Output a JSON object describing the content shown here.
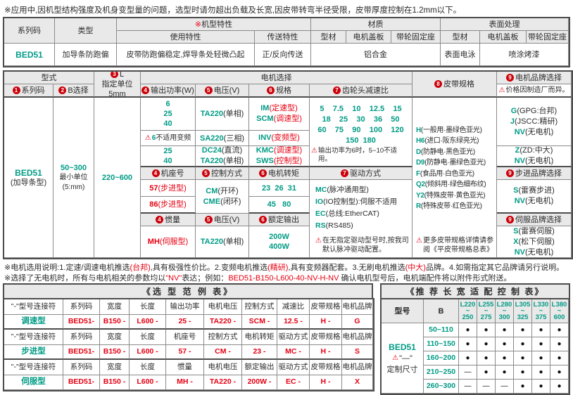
{
  "page": {
    "top_note": "※应用中,因机型结构强度及机身变型量的问题，选型时请勿超出负载及长宽,因皮带转弯半径受限，皮带厚度控制在1.2mm以下。"
  },
  "colors": {
    "teal": "#009b85",
    "red": "#e60012",
    "header_gray": "#e9e9e9"
  },
  "overview": {
    "h_series": "系列码",
    "h_type": "类型",
    "feature_mark": "※",
    "h_feature": "机型特性",
    "h_material": "材质",
    "h_surface": "表面处理",
    "h_use": "使用特性",
    "h_transfer": "传送特性",
    "h_profile": "型材",
    "h_cover": "电机盖板",
    "h_pulley": "带轮固定座",
    "h_profile2": "型材",
    "h_cover2": "电机盖板",
    "h_pulley2": "带轮固定座",
    "series": "BED51",
    "type": "加导条防跑偏",
    "use": "皮带防跑偏稳定,焊导条处轻微凸起",
    "transfer": "正/反向传送",
    "material": "铝合金",
    "surface_profile": "表面电泳",
    "surface_paint": "喷涂烤漆"
  },
  "main": {
    "h_xingshi": "型式",
    "h_series": {
      "num": "1",
      "text": "系列码"
    },
    "h_b": {
      "num": "2",
      "text": "B选择"
    },
    "h_l": {
      "num": "3",
      "text": "L",
      "sub": "指定单位5mm"
    },
    "h_motor": "电机选择",
    "h_power": {
      "num": "4",
      "text": "输出功率(W)"
    },
    "h_volt": {
      "num": "5",
      "text": "电压(V)"
    },
    "h_spec": {
      "num": "6",
      "text": "规格"
    },
    "h_gear": {
      "num": "7",
      "text": "齿轮头减速比"
    },
    "h_belt": {
      "num": "8",
      "text": "皮带规格"
    },
    "h_brand": {
      "num": "9",
      "text": "电机品牌选择"
    },
    "brand_note": "价格因制造厂而异。",
    "series": "BED51",
    "series_sub": "(加导条型)",
    "b_val": "50~300",
    "b_sub1": "最小单位",
    "b_sub2": "(5:mm)",
    "l_val": "220~600",
    "power_a": "6\n25\n40",
    "power_b": {
      "code": "6",
      "text": "不适用变频"
    },
    "power_c": "25\n40",
    "volt_a": {
      "code": "TA220",
      "desc": "(单相)"
    },
    "volt_b": {
      "code": "SA220",
      "desc": "(三相)"
    },
    "volt_c": [
      {
        "code": "DC24",
        "desc": "(直流)"
      },
      {
        "code": "TA220",
        "desc": "(单相)"
      }
    ],
    "spec_a": [
      {
        "code": "IM",
        "desc": "(定速型)"
      },
      {
        "code": "SCM",
        "desc": "(调速型)"
      }
    ],
    "spec_b": [
      {
        "code": "INV",
        "desc": "(变频型)"
      }
    ],
    "spec_c": [
      {
        "code": "KMC",
        "desc": "(调速型)"
      },
      {
        "code": "SWS",
        "desc": "(控制型)"
      }
    ],
    "gear_rows": [
      "5    7.5    10    12.5    15",
      "18    25    30    36    50",
      "60    75    90    100    120",
      "150  180"
    ],
    "gear_note": "输出功率为6时，5~10不适用。",
    "h_frame": {
      "num": "4",
      "text": "机座号"
    },
    "h_ctrl": {
      "num": "5",
      "text": "控制方式"
    },
    "h_torque": {
      "num": "6",
      "text": "电机转矩"
    },
    "h_drive": {
      "num": "7",
      "text": "驱动方式"
    },
    "frame_57": {
      "code": "57",
      "desc": "(步进型)"
    },
    "frame_86": {
      "code": "86",
      "desc": "(步进型)"
    },
    "ctrl_items": [
      {
        "code": "CM",
        "desc": "(开环)"
      },
      {
        "code": "CME",
        "desc": "(闭环)"
      }
    ],
    "torque_57": "23  26  31",
    "torque_86": "45   80",
    "h_inertia": {
      "num": "4",
      "text": "惯量"
    },
    "h_volt2": {
      "num": "5",
      "text": "电压(V)"
    },
    "h_rated": {
      "num": "6",
      "text": "额定输出"
    },
    "mh": {
      "code": "MH",
      "desc": "(伺服型)"
    },
    "mh_volt": {
      "code": "TA220",
      "desc": "(单相)"
    },
    "mh_out": "200W\n400W",
    "drive_items": [
      {
        "code": "MC",
        "desc": "(脉冲通用型)"
      },
      {
        "code": "IO",
        "desc": "(IO控制型):伺服不适用"
      },
      {
        "code": "EC",
        "desc": "(总线:EtherCAT)"
      },
      {
        "code": "RS",
        "desc": "(RS485)"
      }
    ],
    "drive_note": "在无指定驱动型号时,按我司默认脉冲驱动配置。",
    "belt_items": [
      {
        "code": "H",
        "desc": "(一般用·墨绿色亚光)"
      },
      {
        "code": "H6",
        "desc": "(进口·阪东绿亮光)"
      },
      {
        "code": "D",
        "desc": "(防静电·黑色亚光)"
      },
      {
        "code": "D9",
        "desc": "(防静电·墨绿色亚光)"
      },
      {
        "code": "F",
        "desc": "(食品用·白色亚光)"
      },
      {
        "code": "Q2",
        "desc": "(倾斜用·绿色细布纹)"
      },
      {
        "code": "Y2",
        "desc": "(特殊皮带·黄色亚光)"
      },
      {
        "code": "R",
        "desc": "(特殊皮带·红色亚光)"
      }
    ],
    "belt_note": "更多皮带规格详情请参阅《平皮带规格总表》",
    "brand_g": [
      {
        "code": "G",
        "desc": "(GPG:台邦)"
      },
      {
        "code": "J",
        "desc": "(JSCC:精研)"
      },
      {
        "code": "NV",
        "desc": "(无电机)"
      }
    ],
    "brand_z": [
      {
        "code": "Z",
        "desc": "(ZD:中大)"
      },
      {
        "code": "NV",
        "desc": "(无电机)"
      }
    ],
    "h_step_brand": {
      "num": "9",
      "text": "步进品牌选择"
    },
    "brand_step": [
      {
        "code": "S",
        "desc": "(雷赛步进)"
      },
      {
        "code": "NV",
        "desc": "(无电机)"
      }
    ],
    "h_servo_brand": {
      "num": "9",
      "text": "伺服品牌选择"
    },
    "brand_servo": [
      {
        "code": "S",
        "desc": "(雷赛伺服)"
      },
      {
        "code": "X",
        "desc": "(松下伺服)"
      },
      {
        "code": "NV",
        "desc": "(无电机)"
      }
    ]
  },
  "notes": {
    "n1_parts": [
      "※电机选用说明:1.定速/调速电机推选",
      "(台邦)",
      ",具有极强性价比。2.变频电机推选",
      "(精研)",
      ",具有变频器配套。3.无刷电机推选",
      "(中大)",
      "品牌。4.如需指定其它品牌请另行说明。"
    ],
    "n2_pre": "※选择了无电机时，所有与电机相关的参数均以",
    "n2_nv": "\"NV\"",
    "n2_mid": "表达；例如：",
    "n2_code": "BED51-B150-L600-40-NV-H-NV",
    "n2_post": "  确认电机型号后，电机端配件将以附件形式附送。"
  },
  "example_table": {
    "title": "《选 型 范 例 表》",
    "rows": [
      [
        "\"-\"型号连接符",
        "系列码",
        "宽度",
        "长度",
        "输出功率",
        "电机电压",
        "控制方式",
        "减速比",
        "皮带规格",
        "电机品牌"
      ],
      [
        "调速型",
        "BED51-",
        "B150 -",
        "L600 -",
        "25 -",
        "TA220 -",
        "SCM -",
        "12.5 -",
        "H -",
        "G"
      ],
      [
        "\"-\"型号连接符",
        "系列码",
        "宽度",
        "长度",
        "机座号",
        "控制方式",
        "电机转矩",
        "驱动方式",
        "皮带规格",
        "电机品牌"
      ],
      [
        "步进型",
        "BED51-",
        "B150 -",
        "L600 -",
        "57 -",
        "CM -",
        "23 -",
        "MC -",
        "H -",
        "S"
      ],
      [
        "\"-\"型号连接符",
        "系列码",
        "宽度",
        "长度",
        "惯量",
        "电机电压",
        "额定输出",
        "驱动方式",
        "皮带规格",
        "电机品牌"
      ],
      [
        "伺服型",
        "BED51-",
        "B150 -",
        "L600 -",
        "MH -",
        "TA220 -",
        "200W -",
        "EC -",
        "H -",
        "X"
      ]
    ]
  },
  "recommend_table": {
    "title": "《推 荐 长 宽 适 配 控 制 表》",
    "h_model": "型号",
    "h_b": "B",
    "l_headers": [
      "L220\n~\n250",
      "L255\n~\n275",
      "L280\n~\n300",
      "L305\n~\n325",
      "L330\n~\n375",
      "L380\n~\n600"
    ],
    "model": "BED51",
    "model_note_mark": "\"—\"",
    "model_note": "定制尺寸",
    "b_ranges": [
      "50~110",
      "110~150",
      "160~200",
      "210~250",
      "260~300"
    ],
    "dots": [
      "●",
      "●",
      "●",
      "●",
      "●",
      "●",
      "●",
      "●",
      "●",
      "●",
      "●",
      "●",
      "●",
      "●",
      "●",
      "●",
      "●",
      "●",
      "—",
      "●",
      "●",
      "●",
      "●",
      "●",
      "—",
      "—",
      "—",
      "●",
      "●",
      "●"
    ]
  }
}
